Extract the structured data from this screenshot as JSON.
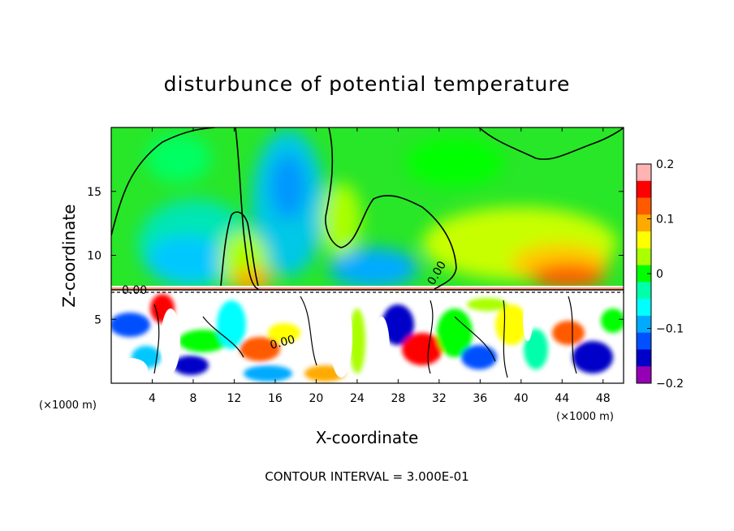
{
  "chart_data": {
    "type": "heatmap",
    "title": "disturbunce of potential temperature",
    "xlabel": "X-coordinate",
    "ylabel": "Z-coordinate",
    "x_unit_left": "(×1000 m)",
    "x_unit_right": "(×1000 m)",
    "footer": "CONTOUR INTERVAL = 3.000E-01",
    "xlim": [
      0,
      50
    ],
    "ylim": [
      0,
      20
    ],
    "x_ticks": [
      4,
      8,
      12,
      16,
      20,
      24,
      28,
      32,
      36,
      40,
      44,
      48
    ],
    "y_ticks": [
      5,
      10,
      15
    ],
    "colorbar": {
      "range": [
        -0.2,
        0.2
      ],
      "ticks": [
        "0.2",
        "0.1",
        "0",
        "−0.1",
        "−0.2"
      ],
      "tick_values": [
        0.2,
        0.1,
        0,
        -0.1,
        -0.2
      ],
      "colors": [
        "#ffb4b4",
        "#ff0000",
        "#ff5a00",
        "#ffaa00",
        "#ffff00",
        "#aaff00",
        "#00ff00",
        "#00ffaa",
        "#00ffff",
        "#00aaff",
        "#0050ff",
        "#0000c8",
        "#9600b4"
      ]
    },
    "contour_labels": [
      {
        "text": "0.00",
        "x": 32,
        "z": 9.5
      },
      {
        "text": "0.00",
        "x": 3,
        "z": 7.2
      },
      {
        "text": "0.00",
        "x": 17,
        "z": 3.0
      }
    ],
    "features": {
      "inversion_height": 7.3,
      "upper_contour_zero_level": [
        [
          0,
          10.0
        ],
        [
          1.5,
          16.5
        ],
        [
          4,
          18.9
        ],
        [
          5.5,
          19.8
        ],
        [
          8.5,
          19.8
        ],
        [
          10,
          11.0
        ],
        [
          11.5,
          13.5
        ],
        [
          12.5,
          13.0
        ],
        [
          14,
          9.0
        ],
        [
          15,
          7.5
        ]
      ]
    }
  }
}
